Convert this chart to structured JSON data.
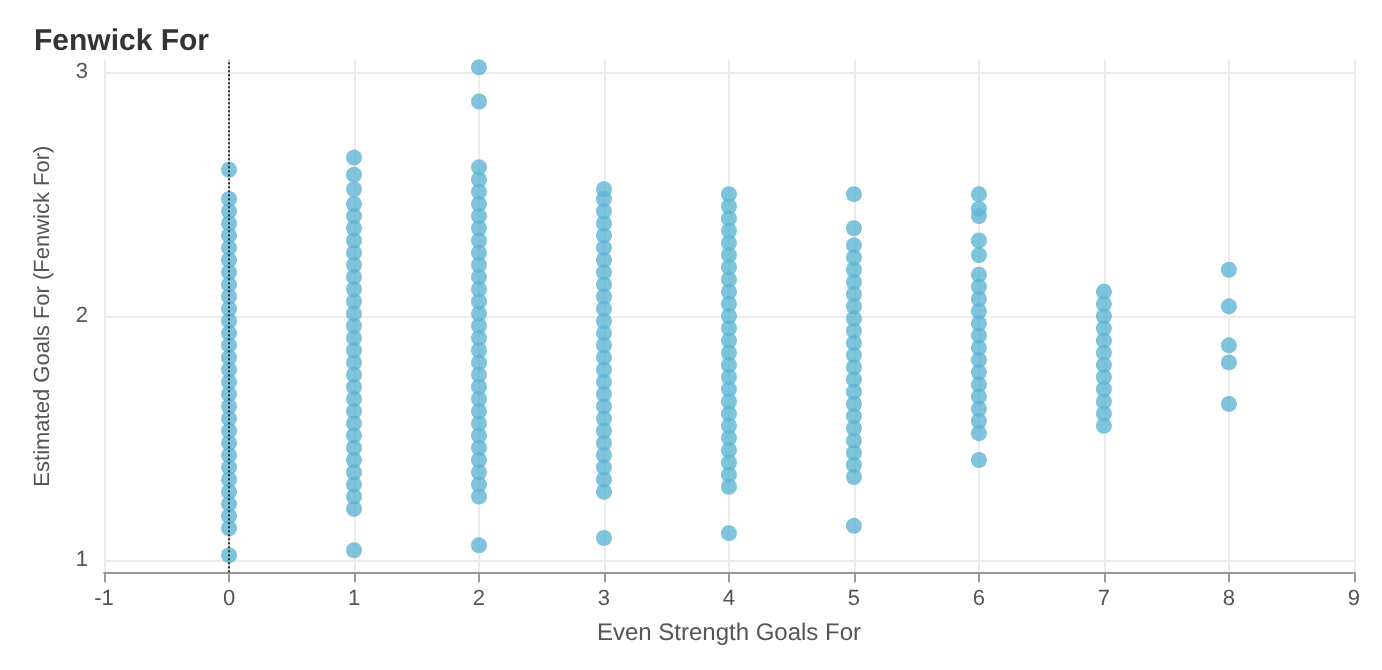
{
  "chart_data": {
    "type": "scatter",
    "title": "Fenwick For",
    "xlabel": "Even Strength Goals For",
    "ylabel": "Estimated Goals For (Fenwick For)",
    "xlim": [
      -1,
      9
    ],
    "xticks": [
      -1,
      0,
      1,
      2,
      3,
      4,
      5,
      6,
      7,
      8,
      9
    ],
    "ylim": [
      0.95,
      3.05
    ],
    "yticks": [
      1,
      2,
      3
    ],
    "grid": true,
    "marker": "circle",
    "ref_lines": [
      {
        "axis": "x",
        "value": 0,
        "color": "#333333",
        "line_style": "dotted"
      }
    ],
    "series": [
      {
        "color": "#5fb4d4",
        "x": [
          0,
          0,
          0,
          0,
          0,
          0,
          0,
          0,
          0,
          0,
          0,
          0,
          0,
          0,
          0,
          0,
          0,
          0,
          0,
          0,
          0,
          0,
          0,
          0,
          0,
          0,
          0,
          0,
          0,
          0
        ],
        "values": [
          1.02,
          1.13,
          1.18,
          1.23,
          1.28,
          1.33,
          1.38,
          1.43,
          1.48,
          1.53,
          1.58,
          1.63,
          1.68,
          1.73,
          1.78,
          1.83,
          1.88,
          1.93,
          1.98,
          2.03,
          2.08,
          2.13,
          2.18,
          2.23,
          2.28,
          2.33,
          2.38,
          2.43,
          2.48,
          2.6
        ]
      },
      {
        "color": "#5fb4d4",
        "x": [
          1,
          1,
          1,
          1,
          1,
          1,
          1,
          1,
          1,
          1,
          1,
          1,
          1,
          1,
          1,
          1,
          1,
          1,
          1,
          1,
          1,
          1,
          1,
          1,
          1,
          1,
          1,
          1,
          1,
          1
        ],
        "values": [
          1.04,
          1.21,
          1.26,
          1.31,
          1.36,
          1.41,
          1.46,
          1.51,
          1.56,
          1.61,
          1.66,
          1.71,
          1.76,
          1.81,
          1.86,
          1.91,
          1.96,
          2.01,
          2.06,
          2.11,
          2.16,
          2.21,
          2.26,
          2.31,
          2.36,
          2.41,
          2.46,
          2.52,
          2.58,
          2.65
        ]
      },
      {
        "color": "#5fb4d4",
        "x": [
          2,
          2,
          2,
          2,
          2,
          2,
          2,
          2,
          2,
          2,
          2,
          2,
          2,
          2,
          2,
          2,
          2,
          2,
          2,
          2,
          2,
          2,
          2,
          2,
          2,
          2,
          2,
          2,
          2,
          2,
          2
        ],
        "values": [
          1.06,
          1.26,
          1.31,
          1.36,
          1.41,
          1.46,
          1.51,
          1.56,
          1.61,
          1.66,
          1.71,
          1.76,
          1.81,
          1.86,
          1.91,
          1.96,
          2.01,
          2.06,
          2.11,
          2.16,
          2.21,
          2.26,
          2.31,
          2.36,
          2.41,
          2.46,
          2.51,
          2.56,
          2.61,
          2.88,
          3.02
        ]
      },
      {
        "color": "#5fb4d4",
        "x": [
          3,
          3,
          3,
          3,
          3,
          3,
          3,
          3,
          3,
          3,
          3,
          3,
          3,
          3,
          3,
          3,
          3,
          3,
          3,
          3,
          3,
          3,
          3,
          3,
          3,
          3,
          3
        ],
        "values": [
          1.09,
          1.28,
          1.33,
          1.38,
          1.43,
          1.48,
          1.53,
          1.58,
          1.63,
          1.68,
          1.73,
          1.78,
          1.83,
          1.88,
          1.93,
          1.98,
          2.03,
          2.08,
          2.13,
          2.18,
          2.23,
          2.28,
          2.33,
          2.38,
          2.43,
          2.48,
          2.52
        ]
      },
      {
        "color": "#5fb4d4",
        "x": [
          4,
          4,
          4,
          4,
          4,
          4,
          4,
          4,
          4,
          4,
          4,
          4,
          4,
          4,
          4,
          4,
          4,
          4,
          4,
          4,
          4,
          4,
          4,
          4,
          4,
          4
        ],
        "values": [
          1.11,
          1.3,
          1.35,
          1.4,
          1.45,
          1.5,
          1.55,
          1.6,
          1.65,
          1.7,
          1.75,
          1.8,
          1.85,
          1.9,
          1.95,
          2.0,
          2.05,
          2.1,
          2.15,
          2.2,
          2.25,
          2.3,
          2.35,
          2.4,
          2.45,
          2.5
        ]
      },
      {
        "color": "#5fb4d4",
        "x": [
          5,
          5,
          5,
          5,
          5,
          5,
          5,
          5,
          5,
          5,
          5,
          5,
          5,
          5,
          5,
          5,
          5,
          5,
          5,
          5,
          5,
          5,
          5
        ],
        "values": [
          1.14,
          1.34,
          1.39,
          1.44,
          1.49,
          1.54,
          1.59,
          1.64,
          1.69,
          1.74,
          1.79,
          1.84,
          1.89,
          1.94,
          1.99,
          2.04,
          2.09,
          2.14,
          2.19,
          2.24,
          2.29,
          2.36,
          2.5
        ]
      },
      {
        "color": "#5fb4d4",
        "x": [
          6,
          6,
          6,
          6,
          6,
          6,
          6,
          6,
          6,
          6,
          6,
          6,
          6,
          6,
          6,
          6,
          6,
          6,
          6,
          6
        ],
        "values": [
          1.41,
          1.52,
          1.57,
          1.62,
          1.67,
          1.72,
          1.77,
          1.82,
          1.87,
          1.92,
          1.97,
          2.02,
          2.07,
          2.12,
          2.17,
          2.25,
          2.31,
          2.41,
          2.44,
          2.5
        ]
      },
      {
        "color": "#5fb4d4",
        "x": [
          7,
          7,
          7,
          7,
          7,
          7,
          7,
          7,
          7,
          7,
          7,
          7
        ],
        "values": [
          1.55,
          1.6,
          1.65,
          1.7,
          1.75,
          1.8,
          1.85,
          1.9,
          1.95,
          2.0,
          2.05,
          2.1
        ]
      },
      {
        "color": "#5fb4d4",
        "x": [
          8,
          8,
          8,
          8,
          8
        ],
        "values": [
          1.64,
          1.81,
          1.88,
          2.04,
          2.19
        ]
      }
    ]
  }
}
